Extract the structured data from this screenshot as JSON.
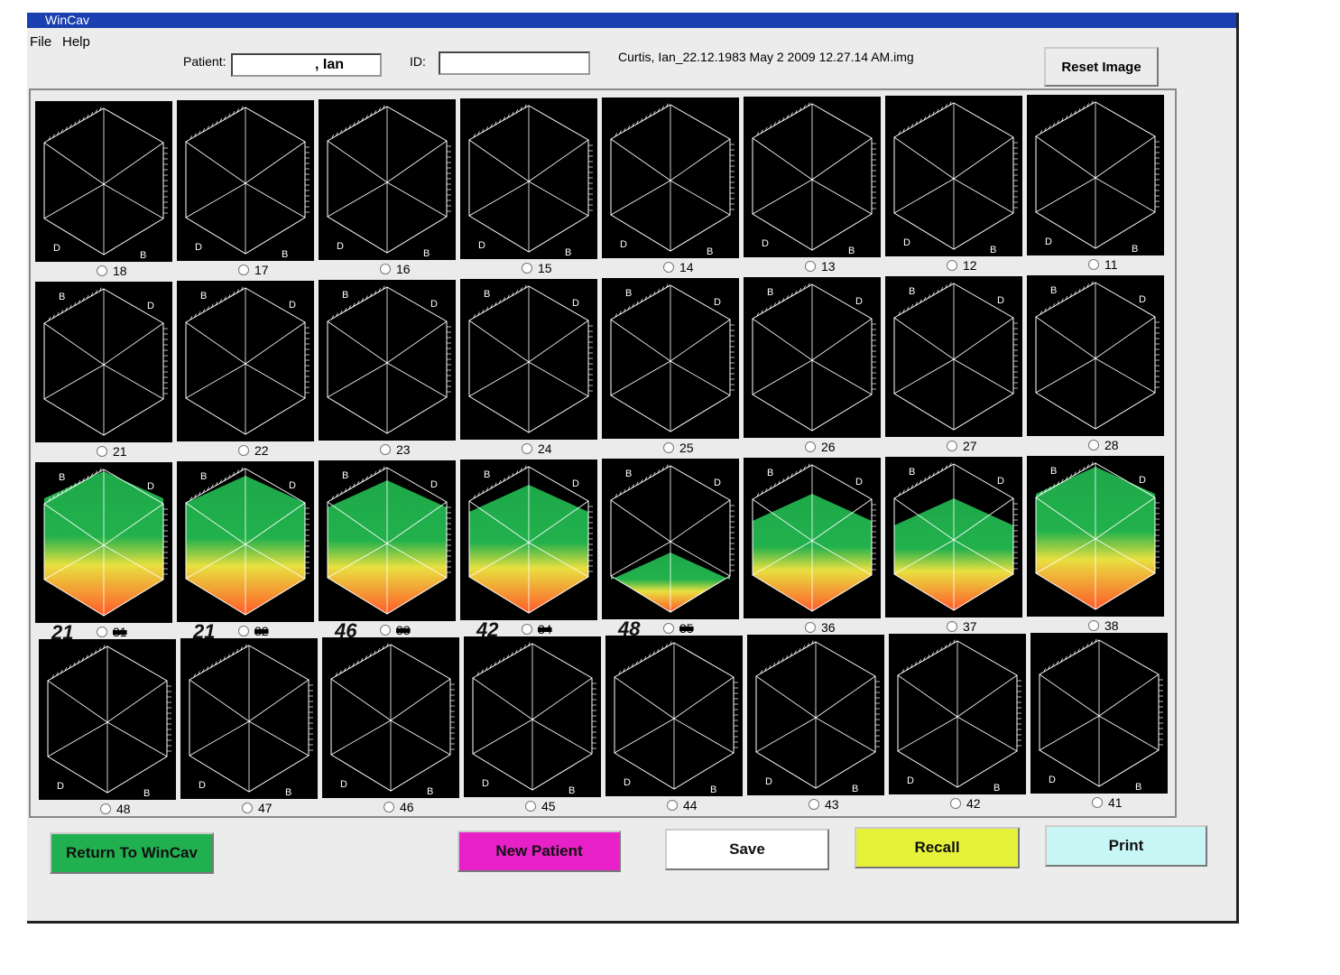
{
  "window": {
    "title": "WinCav",
    "menu": [
      "File",
      "Help"
    ]
  },
  "header": {
    "patient_label": "Patient:",
    "patient_value": ", Ian",
    "id_label": "ID:",
    "id_value": "",
    "file_name": "Curtis, Ian_22.12.1983  May 2 2009 12.27.14 AM.img",
    "reset_button": "Reset Image"
  },
  "rows": [
    {
      "corner_labels": [
        "D",
        "B"
      ],
      "cells": [
        {
          "number": "18"
        },
        {
          "number": "17"
        },
        {
          "number": "16"
        },
        {
          "number": "15"
        },
        {
          "number": "14"
        },
        {
          "number": "13"
        },
        {
          "number": "12"
        },
        {
          "number": "11"
        }
      ]
    },
    {
      "corner_labels": [
        "B",
        "D"
      ],
      "cells": [
        {
          "number": "21"
        },
        {
          "number": "22"
        },
        {
          "number": "23"
        },
        {
          "number": "24"
        },
        {
          "number": "25"
        },
        {
          "number": "26"
        },
        {
          "number": "27"
        },
        {
          "number": "28"
        }
      ]
    },
    {
      "corner_labels": [
        "B",
        "D"
      ],
      "cells": [
        {
          "number": "31",
          "annotation": "21"
        },
        {
          "number": "32",
          "annotation": "21"
        },
        {
          "number": "33",
          "annotation": "46"
        },
        {
          "number": "34",
          "annotation": "42"
        },
        {
          "number": "35",
          "annotation": "48"
        },
        {
          "number": "36"
        },
        {
          "number": "37"
        },
        {
          "number": "38"
        }
      ]
    },
    {
      "corner_labels": [
        "D",
        "B"
      ],
      "cells": [
        {
          "number": "48"
        },
        {
          "number": "47"
        },
        {
          "number": "46"
        },
        {
          "number": "45"
        },
        {
          "number": "44"
        },
        {
          "number": "43"
        },
        {
          "number": "42"
        },
        {
          "number": "41"
        }
      ]
    }
  ],
  "buttons": [
    "Return To WinCav",
    "New Patient",
    "Save",
    "Recall",
    "Print"
  ]
}
